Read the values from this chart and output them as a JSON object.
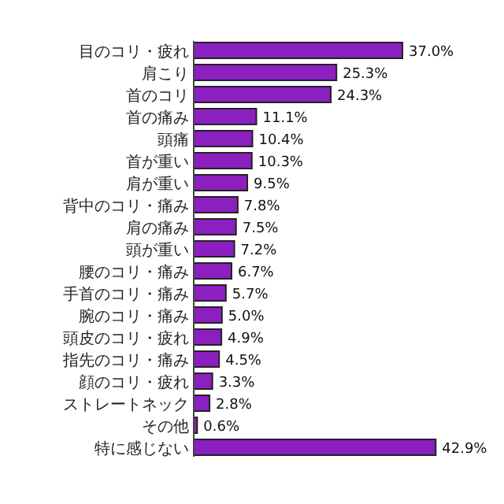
{
  "chart_data": {
    "type": "bar",
    "orientation": "horizontal",
    "categories": [
      "目のコリ・疲れ",
      "肩こり",
      "首のコリ",
      "首の痛み",
      "頭痛",
      "首が重い",
      "肩が重い",
      "背中のコリ・痛み",
      "肩の痛み",
      "頭が重い",
      "腰のコリ・痛み",
      "手首のコリ・痛み",
      "腕のコリ・痛み",
      "頭皮のコリ・疲れ",
      "指先のコリ・痛み",
      "顔のコリ・疲れ",
      "ストレートネック",
      "その他",
      "特に感じない"
    ],
    "values": [
      37.0,
      25.3,
      24.3,
      11.1,
      10.4,
      10.3,
      9.5,
      7.8,
      7.5,
      7.2,
      6.7,
      5.7,
      5.0,
      4.9,
      4.5,
      3.3,
      2.8,
      0.6,
      42.9
    ],
    "color": "#8b1fc0",
    "value_labels": [
      "37.0%",
      "25.3%",
      "24.3%",
      "11.1%",
      "10.4%",
      "10.3%",
      "9.5%",
      "7.8%",
      "7.5%",
      "7.2%",
      "6.7%",
      "5.7%",
      "5.0%",
      "4.9%",
      "4.5%",
      "3.3%",
      "2.8%",
      "0.6%",
      "42.9%"
    ],
    "xlim": [
      0,
      43
    ]
  }
}
